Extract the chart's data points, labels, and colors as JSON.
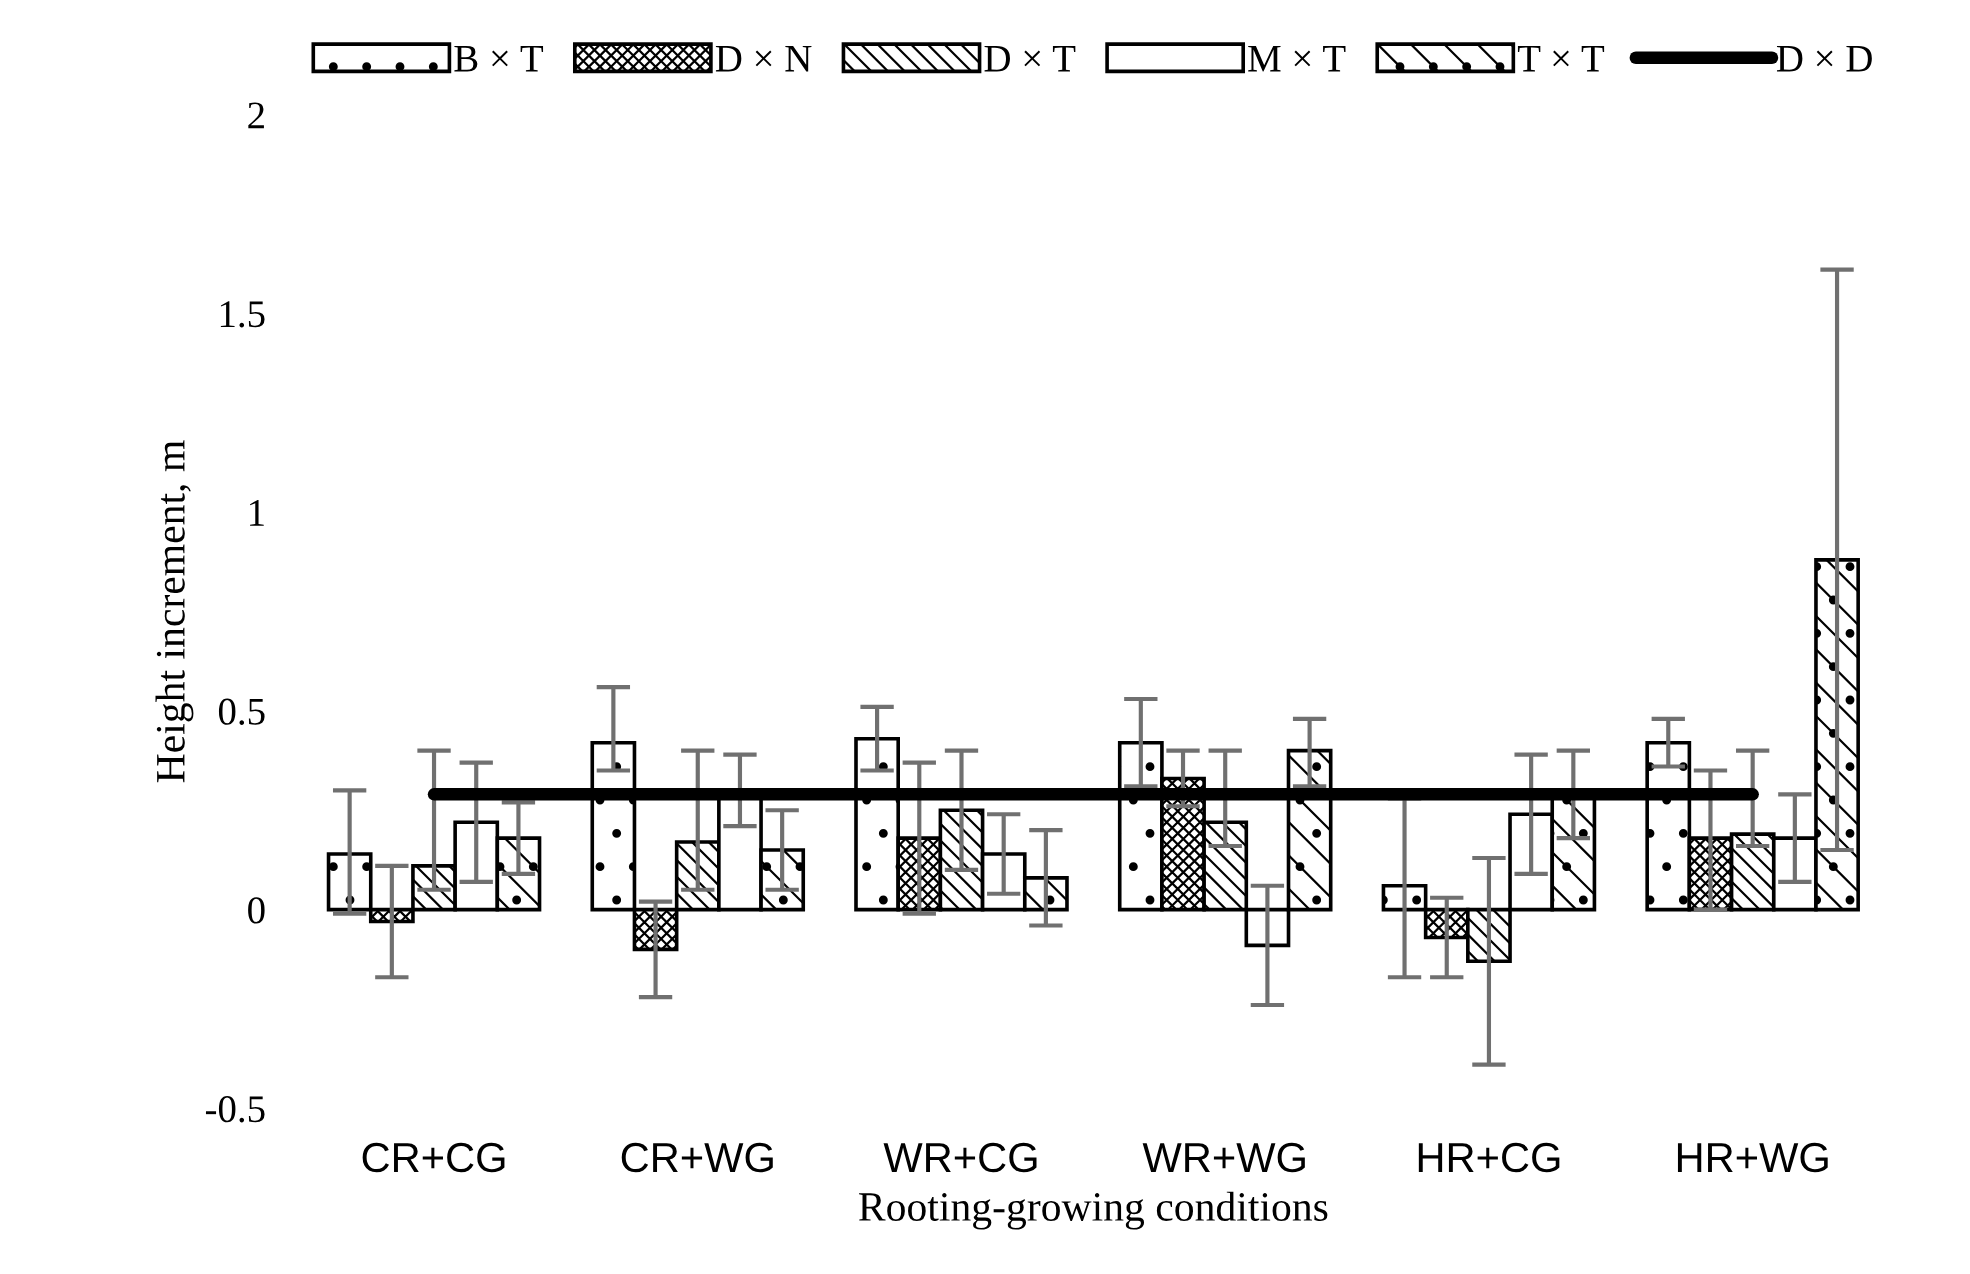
{
  "chart_data": {
    "type": "bar",
    "xlabel": "Rooting-growing conditions",
    "ylabel": "Height increment, m",
    "categories": [
      "CR+CG",
      "CR+WG",
      "WR+CG",
      "WR+WG",
      "HR+CG",
      "HR+WG"
    ],
    "series": [
      {
        "name": "B × T",
        "color": "#000000",
        "values": [
          0.14,
          0.42,
          0.43,
          0.42,
          0.06,
          0.42
        ],
        "errors": [
          [
            -0.01,
            0.3
          ],
          [
            0.35,
            0.56
          ],
          [
            0.35,
            0.51
          ],
          [
            0.31,
            0.53
          ],
          [
            -0.17,
            0.28
          ],
          [
            0.36,
            0.48
          ]
        ]
      },
      {
        "name": "D × N",
        "color": "#000000",
        "values": [
          -0.03,
          -0.1,
          0.18,
          0.33,
          -0.07,
          0.18
        ],
        "errors": [
          [
            -0.17,
            0.11
          ],
          [
            -0.22,
            0.02
          ],
          [
            -0.01,
            0.37
          ],
          [
            0.26,
            0.4
          ],
          [
            -0.17,
            0.03
          ],
          [
            0.0,
            0.35
          ]
        ]
      },
      {
        "name": "D × T",
        "color": "#000000",
        "values": [
          0.11,
          0.17,
          0.25,
          0.22,
          -0.13,
          0.19
        ],
        "errors": [
          [
            0.05,
            0.4
          ],
          [
            0.05,
            0.4
          ],
          [
            0.1,
            0.4
          ],
          [
            0.16,
            0.4
          ],
          [
            -0.39,
            0.13
          ],
          [
            0.16,
            0.4
          ]
        ]
      },
      {
        "name": "M × T",
        "color": "#ffffff",
        "values": [
          0.22,
          0.29,
          0.14,
          -0.09,
          0.24,
          0.18
        ],
        "errors": [
          [
            0.07,
            0.37
          ],
          [
            0.21,
            0.39
          ],
          [
            0.04,
            0.24
          ],
          [
            -0.24,
            0.06
          ],
          [
            0.09,
            0.39
          ],
          [
            0.07,
            0.29
          ]
        ]
      },
      {
        "name": "T × T",
        "color": "#000000",
        "values": [
          0.18,
          0.15,
          0.08,
          0.4,
          0.29,
          0.88
        ],
        "errors": [
          [
            0.09,
            0.27
          ],
          [
            0.05,
            0.25
          ],
          [
            -0.04,
            0.2
          ],
          [
            0.31,
            0.48
          ],
          [
            0.18,
            0.4
          ],
          [
            0.15,
            1.61
          ]
        ]
      },
      {
        "name": "D × D",
        "type": "line",
        "color": "#000000",
        "values": [
          0.29,
          0.29,
          0.29,
          0.29,
          0.29,
          0.29
        ]
      }
    ],
    "ylim": [
      -0.5,
      2
    ],
    "yticks": [
      {
        "value": -0.5,
        "label": "-0.5"
      },
      0,
      0.5,
      1,
      1.5,
      2
    ],
    "grid": false,
    "legend": "top",
    "marker": "none",
    "line_style": "solid"
  }
}
